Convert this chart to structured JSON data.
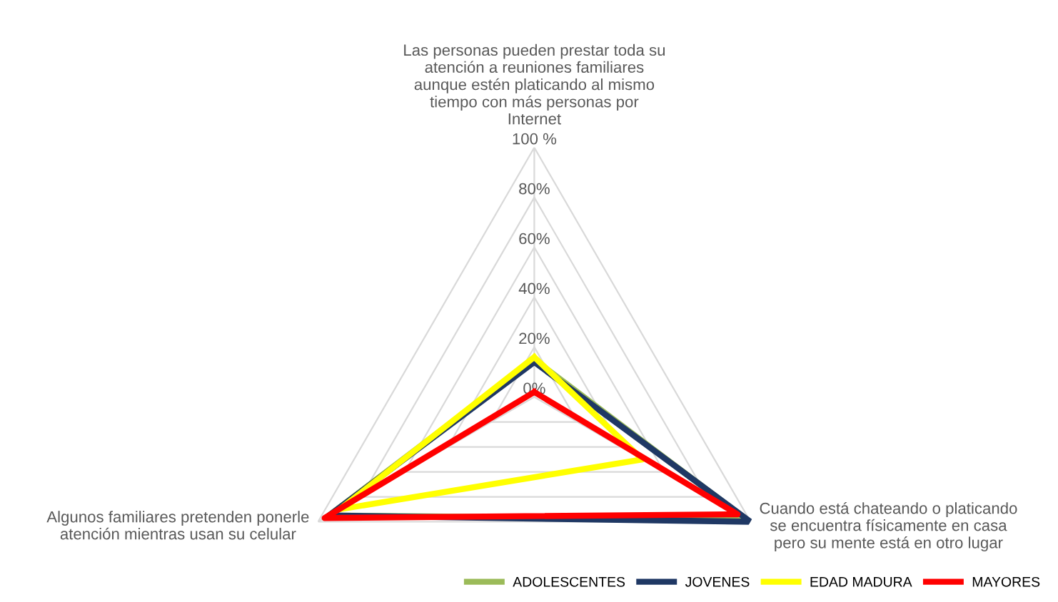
{
  "chart_data": {
    "type": "radar",
    "categories": [
      "Las personas pueden prestar toda su\natención a reuniones familiares\naunque estén platicando al mismo\ntiempo con más personas por\nInternet",
      "Cuando está chateando o platicando\nse encuentra físicamente en casa\npero su mente está en otro lugar",
      "Algunos familiares pretenden ponerle\natención mientras usan su celular"
    ],
    "series": [
      {
        "name": "ADOLESCENTES",
        "color": "#9bbb59",
        "values": [
          15,
          98,
          95
        ]
      },
      {
        "name": "JOVENES",
        "color": "#1f3864",
        "values": [
          14,
          100,
          95
        ]
      },
      {
        "name": "EDAD MADURA",
        "color": "#ffff00",
        "values": [
          16,
          50,
          90
        ]
      },
      {
        "name": "MAYORES",
        "color": "#ff0000",
        "values": [
          2,
          94,
          97
        ]
      }
    ],
    "ylim": [
      0,
      100
    ],
    "yticks": [
      {
        "value": 0,
        "label": "0%"
      },
      {
        "value": 20,
        "label": "20%"
      },
      {
        "value": 40,
        "label": "40%"
      },
      {
        "value": 60,
        "label": "60%"
      },
      {
        "value": 80,
        "label": "80%"
      },
      {
        "value": 100,
        "label": "100 %"
      }
    ],
    "grid": true,
    "legend": "bottom right"
  }
}
